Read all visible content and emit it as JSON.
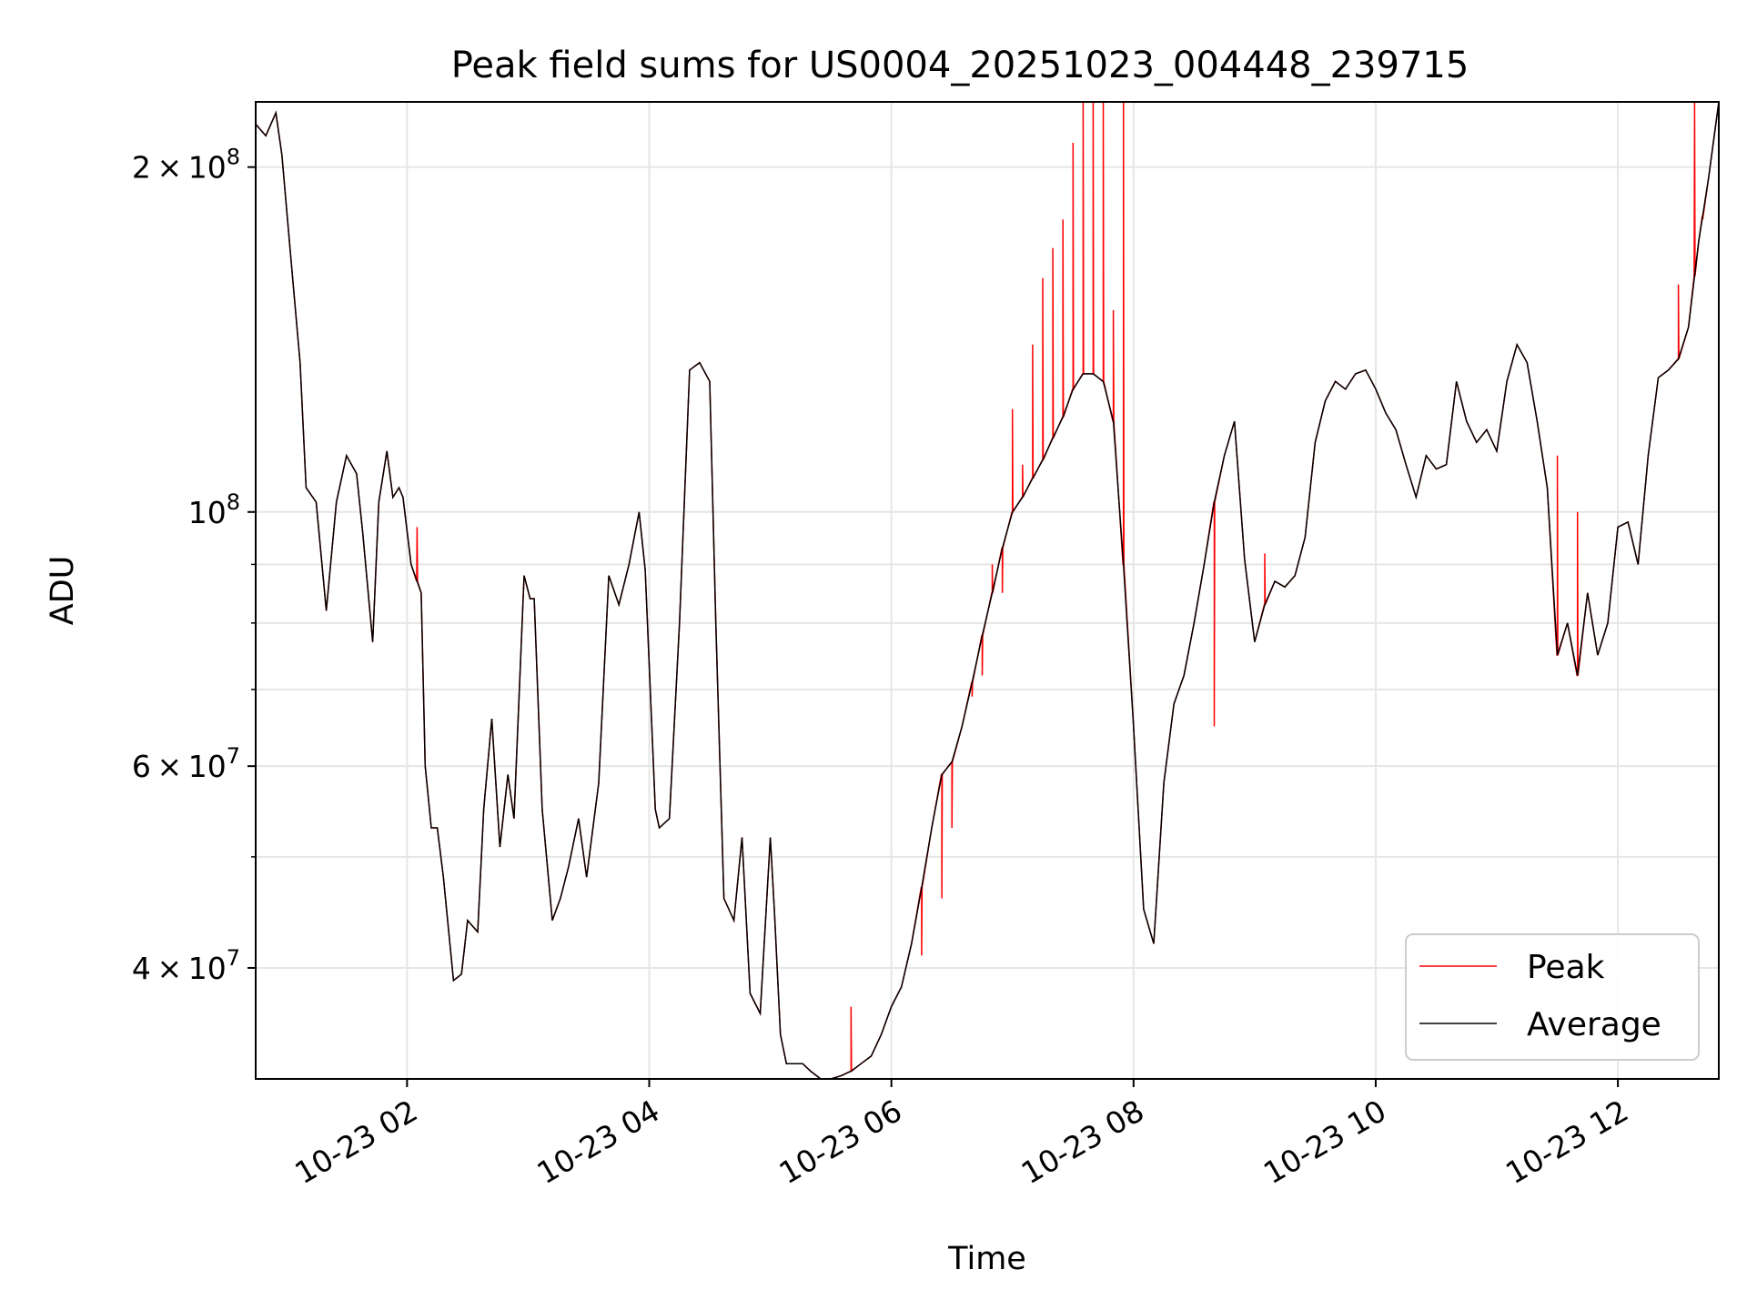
{
  "chart_data": {
    "type": "line",
    "title": "Peak field sums for US0004_20251023_004448_239715",
    "xlabel": "Time",
    "ylabel": "ADU",
    "y_scale": "log",
    "grid": true,
    "legend_position": "lower-right",
    "xlim": [
      "2025-10-23T00:45",
      "2025-10-23T12:50"
    ],
    "ylim": [
      32000000,
      228000000
    ],
    "x_ticks": [
      {
        "value": "2025-10-23T02:00",
        "label": "10-23 02"
      },
      {
        "value": "2025-10-23T04:00",
        "label": "10-23 04"
      },
      {
        "value": "2025-10-23T06:00",
        "label": "10-23 06"
      },
      {
        "value": "2025-10-23T08:00",
        "label": "10-23 08"
      },
      {
        "value": "2025-10-23T10:00",
        "label": "10-23 10"
      },
      {
        "value": "2025-10-23T12:00",
        "label": "10-23 12"
      }
    ],
    "y_ticks": [
      {
        "value": 40000000,
        "mantissa": "4",
        "exponent": "7"
      },
      {
        "value": 60000000,
        "mantissa": "6",
        "exponent": "7"
      },
      {
        "value": 100000000,
        "mantissa": "",
        "exponent": "8"
      },
      {
        "value": 200000000,
        "mantissa": "2",
        "exponent": "8"
      }
    ],
    "y_minor_ticks": [
      50000000,
      70000000,
      80000000,
      90000000
    ],
    "series": [
      {
        "name": "Average",
        "color": "#000000",
        "x": [
          "2025-10-23T00:45",
          "2025-10-23T00:50",
          "2025-10-23T00:55",
          "2025-10-23T00:58",
          "2025-10-23T01:02",
          "2025-10-23T01:07",
          "2025-10-23T01:10",
          "2025-10-23T01:15",
          "2025-10-23T01:20",
          "2025-10-23T01:25",
          "2025-10-23T01:30",
          "2025-10-23T01:35",
          "2025-10-23T01:38",
          "2025-10-23T01:43",
          "2025-10-23T01:46",
          "2025-10-23T01:50",
          "2025-10-23T01:53",
          "2025-10-23T01:56",
          "2025-10-23T01:58",
          "2025-10-23T02:02",
          "2025-10-23T02:07",
          "2025-10-23T02:09",
          "2025-10-23T02:12",
          "2025-10-23T02:15",
          "2025-10-23T02:18",
          "2025-10-23T02:23",
          "2025-10-23T02:27",
          "2025-10-23T02:30",
          "2025-10-23T02:35",
          "2025-10-23T02:38",
          "2025-10-23T02:42",
          "2025-10-23T02:46",
          "2025-10-23T02:50",
          "2025-10-23T02:53",
          "2025-10-23T02:58",
          "2025-10-23T03:01",
          "2025-10-23T03:03",
          "2025-10-23T03:07",
          "2025-10-23T03:12",
          "2025-10-23T03:16",
          "2025-10-23T03:20",
          "2025-10-23T03:25",
          "2025-10-23T03:29",
          "2025-10-23T03:35",
          "2025-10-23T03:40",
          "2025-10-23T03:45",
          "2025-10-23T03:50",
          "2025-10-23T03:55",
          "2025-10-23T03:58",
          "2025-10-23T04:03",
          "2025-10-23T04:05",
          "2025-10-23T04:10",
          "2025-10-23T04:15",
          "2025-10-23T04:20",
          "2025-10-23T04:25",
          "2025-10-23T04:30",
          "2025-10-23T04:33",
          "2025-10-23T04:37",
          "2025-10-23T04:42",
          "2025-10-23T04:46",
          "2025-10-23T04:50",
          "2025-10-23T04:55",
          "2025-10-23T05:00",
          "2025-10-23T05:02",
          "2025-10-23T05:05",
          "2025-10-23T05:08",
          "2025-10-23T05:12",
          "2025-10-23T05:16",
          "2025-10-23T05:20",
          "2025-10-23T05:25",
          "2025-10-23T05:30",
          "2025-10-23T05:35",
          "2025-10-23T05:40",
          "2025-10-23T05:45",
          "2025-10-23T05:50",
          "2025-10-23T05:55",
          "2025-10-23T06:00",
          "2025-10-23T06:05",
          "2025-10-23T06:10",
          "2025-10-23T06:15",
          "2025-10-23T06:20",
          "2025-10-23T06:25",
          "2025-10-23T06:30",
          "2025-10-23T06:35",
          "2025-10-23T06:40",
          "2025-10-23T06:45",
          "2025-10-23T06:50",
          "2025-10-23T06:55",
          "2025-10-23T07:00",
          "2025-10-23T07:05",
          "2025-10-23T07:10",
          "2025-10-23T07:15",
          "2025-10-23T07:20",
          "2025-10-23T07:25",
          "2025-10-23T07:30",
          "2025-10-23T07:35",
          "2025-10-23T07:40",
          "2025-10-23T07:45",
          "2025-10-23T07:50",
          "2025-10-23T07:55",
          "2025-10-23T08:00",
          "2025-10-23T08:05",
          "2025-10-23T08:10",
          "2025-10-23T08:15",
          "2025-10-23T08:20",
          "2025-10-23T08:25",
          "2025-10-23T08:30",
          "2025-10-23T08:35",
          "2025-10-23T08:40",
          "2025-10-23T08:45",
          "2025-10-23T08:50",
          "2025-10-23T08:55",
          "2025-10-23T09:00",
          "2025-10-23T09:05",
          "2025-10-23T09:10",
          "2025-10-23T09:15",
          "2025-10-23T09:20",
          "2025-10-23T09:25",
          "2025-10-23T09:30",
          "2025-10-23T09:35",
          "2025-10-23T09:40",
          "2025-10-23T09:45",
          "2025-10-23T09:50",
          "2025-10-23T09:55",
          "2025-10-23T10:00",
          "2025-10-23T10:05",
          "2025-10-23T10:10",
          "2025-10-23T10:15",
          "2025-10-23T10:20",
          "2025-10-23T10:25",
          "2025-10-23T10:30",
          "2025-10-23T10:35",
          "2025-10-23T10:40",
          "2025-10-23T10:45",
          "2025-10-23T10:50",
          "2025-10-23T10:55",
          "2025-10-23T11:00",
          "2025-10-23T11:05",
          "2025-10-23T11:10",
          "2025-10-23T11:15",
          "2025-10-23T11:20",
          "2025-10-23T11:25",
          "2025-10-23T11:30",
          "2025-10-23T11:35",
          "2025-10-23T11:40",
          "2025-10-23T11:45",
          "2025-10-23T11:50",
          "2025-10-23T11:55",
          "2025-10-23T12:00",
          "2025-10-23T12:05",
          "2025-10-23T12:10",
          "2025-10-23T12:15",
          "2025-10-23T12:20",
          "2025-10-23T12:25",
          "2025-10-23T12:30",
          "2025-10-23T12:35",
          "2025-10-23T12:40",
          "2025-10-23T12:45",
          "2025-10-23T12:50"
        ],
        "values": [
          218000000,
          213000000,
          223000000,
          205000000,
          170000000,
          135000000,
          105000000,
          102000000,
          82000000,
          102000000,
          112000000,
          108000000,
          96000000,
          77000000,
          102000000,
          113000000,
          103000000,
          105000000,
          103000000,
          90000000,
          85000000,
          60000000,
          53000000,
          53000000,
          48000000,
          39000000,
          39500000,
          44000000,
          43000000,
          55000000,
          66000000,
          51000000,
          59000000,
          54000000,
          88000000,
          84000000,
          84000000,
          55000000,
          44000000,
          46000000,
          49000000,
          54000000,
          48000000,
          58000000,
          88000000,
          83000000,
          90000000,
          100000000,
          89000000,
          55000000,
          53000000,
          54000000,
          80000000,
          133000000,
          135000000,
          130000000,
          80000000,
          46000000,
          44000000,
          52000000,
          38000000,
          36500000,
          52000000,
          45000000,
          35000000,
          33000000,
          33000000,
          33000000,
          32500000,
          32000000,
          32000000,
          32200000,
          32500000,
          33000000,
          33500000,
          35000000,
          37000000,
          38500000,
          42000000,
          47000000,
          53000000,
          59000000,
          60500000,
          65000000,
          71000000,
          78000000,
          85000000,
          93000000,
          100000000,
          103000000,
          107000000,
          111000000,
          116000000,
          121000000,
          128000000,
          132000000,
          132000000,
          130000000,
          120000000,
          90000000,
          65000000,
          45000000,
          42000000,
          58000000,
          68000000,
          72000000,
          80000000,
          90000000,
          102000000,
          112000000,
          120000000,
          91000000,
          77000000,
          83000000,
          87000000,
          86000000,
          88000000,
          95000000,
          115000000,
          125000000,
          130000000,
          128000000,
          132000000,
          133000000,
          128000000,
          122000000,
          118000000,
          110000000,
          103000000,
          112000000,
          109000000,
          110000000,
          130000000,
          120000000,
          115000000,
          118000000,
          113000000,
          130000000,
          140000000,
          135000000,
          120000000,
          105000000,
          75000000,
          80000000,
          72000000,
          85000000,
          75000000,
          80000000,
          97000000,
          98000000,
          90000000,
          112000000,
          131000000,
          133000000,
          136000000,
          145000000,
          172000000,
          196000000,
          228000000
        ]
      },
      {
        "name": "Peak",
        "color": "#ff0000",
        "spikes": [
          {
            "x": "2025-10-23T02:05",
            "value": 97000000
          },
          {
            "x": "2025-10-23T05:40",
            "value": 37000000
          },
          {
            "x": "2025-10-23T06:15",
            "value": 41000000
          },
          {
            "x": "2025-10-23T06:25",
            "value": 46000000
          },
          {
            "x": "2025-10-23T06:30",
            "value": 53000000
          },
          {
            "x": "2025-10-23T06:40",
            "value": 69000000
          },
          {
            "x": "2025-10-23T06:45",
            "value": 72000000
          },
          {
            "x": "2025-10-23T06:50",
            "value": 90000000
          },
          {
            "x": "2025-10-23T06:55",
            "value": 85000000
          },
          {
            "x": "2025-10-23T07:00",
            "value": 123000000
          },
          {
            "x": "2025-10-23T07:05",
            "value": 110000000
          },
          {
            "x": "2025-10-23T07:10",
            "value": 140000000
          },
          {
            "x": "2025-10-23T07:15",
            "value": 160000000
          },
          {
            "x": "2025-10-23T07:20",
            "value": 170000000
          },
          {
            "x": "2025-10-23T07:25",
            "value": 180000000
          },
          {
            "x": "2025-10-23T07:30",
            "value": 210000000
          },
          {
            "x": "2025-10-23T07:35",
            "value": 228000000
          },
          {
            "x": "2025-10-23T07:40",
            "value": 228000000
          },
          {
            "x": "2025-10-23T07:45",
            "value": 228000000
          },
          {
            "x": "2025-10-23T07:50",
            "value": 150000000
          },
          {
            "x": "2025-10-23T07:55",
            "value": 228000000
          },
          {
            "x": "2025-10-23T08:40",
            "value": 65000000
          },
          {
            "x": "2025-10-23T09:05",
            "value": 92000000
          },
          {
            "x": "2025-10-23T11:30",
            "value": 112000000
          },
          {
            "x": "2025-10-23T11:40",
            "value": 100000000
          },
          {
            "x": "2025-10-23T12:30",
            "value": 158000000
          },
          {
            "x": "2025-10-23T12:38",
            "value": 228000000
          },
          {
            "x": "2025-10-23T12:42",
            "value": 180000000
          }
        ]
      }
    ]
  }
}
